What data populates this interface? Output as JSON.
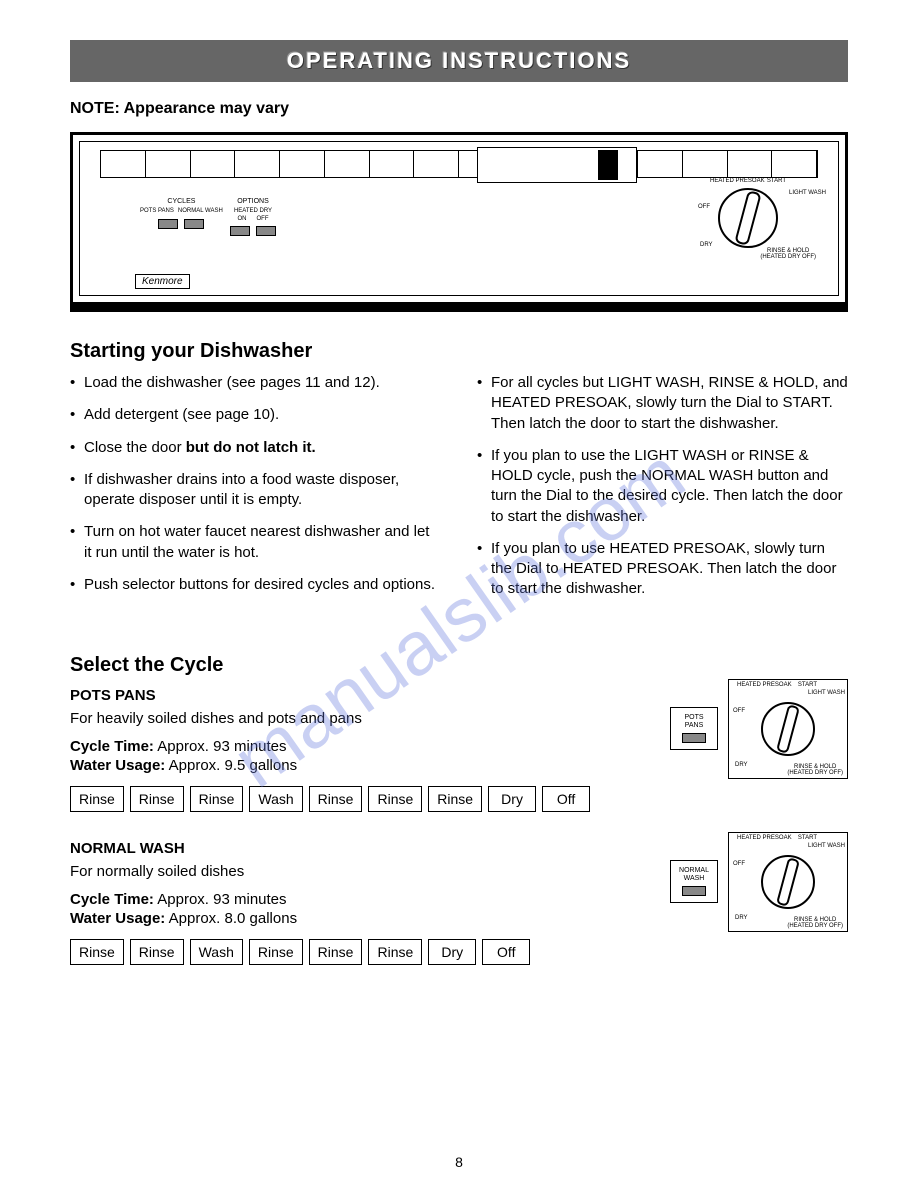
{
  "page": {
    "header": "OPERATING INSTRUCTIONS",
    "note": "NOTE: Appearance may vary",
    "page_number": "8",
    "watermark": "manualslib.com"
  },
  "panel": {
    "cycles_label": "CYCLES",
    "cycles_btn1": "POTS PANS",
    "cycles_btn2": "NORMAL WASH",
    "options_label": "OPTIONS",
    "options_sub": "HEATED DRY",
    "options_btn1": "ON",
    "options_btn2": "OFF",
    "brand": "Kenmore",
    "dial": {
      "heated_presoak": "HEATED PRESOAK",
      "start": "START",
      "light_wash": "LIGHT WASH",
      "off": "OFF",
      "dry": "DRY",
      "rinse_hold": "RINSE & HOLD",
      "rinse_hold_sub": "(HEATED DRY OFF)"
    }
  },
  "starting": {
    "title": "Starting your Dishwasher",
    "left": [
      "Load the dishwasher (see pages 11 and 12).",
      "Add detergent (see page 10).",
      "Close the door <b>but do not latch it.</b>",
      "If dishwasher drains into a food waste disposer, operate disposer until it is empty.",
      "Turn on hot water faucet nearest dishwasher and let it run until the water is hot.",
      "Push selector buttons for desired cycles and options."
    ],
    "right": [
      "For all cycles but LIGHT WASH, RINSE & HOLD, and HEATED PRESOAK, slowly turn the Dial to START. Then latch the door to start the dishwasher.",
      "If you plan to use the LIGHT WASH or RINSE & HOLD cycle, push the NORMAL WASH button and turn the Dial to the desired cycle. Then latch the door to start the dishwasher.",
      "If you plan to use HEATED PRESOAK, slowly turn the Dial to HEATED PRESOAK. Then latch the door to start the dishwasher."
    ]
  },
  "select": {
    "title": "Select the Cycle"
  },
  "pots_pans": {
    "name": "POTS PANS",
    "desc": "For heavily soiled dishes and pots and pans",
    "time_label": "Cycle Time:",
    "time": " Approx. 93 minutes",
    "water_label": "Water Usage:",
    "water": " Approx. 9.5 gallons",
    "steps": [
      "Rinse",
      "Rinse",
      "Rinse",
      "Wash",
      "Rinse",
      "Rinse",
      "Rinse",
      "Dry",
      "Off"
    ],
    "button_label": "POTS PANS"
  },
  "normal_wash": {
    "name": "NORMAL WASH",
    "desc": "For normally soiled dishes",
    "time_label": "Cycle Time:",
    "time": " Approx. 93 minutes",
    "water_label": "Water Usage:",
    "water": " Approx. 8.0 gallons",
    "steps": [
      "Rinse",
      "Rinse",
      "Wash",
      "Rinse",
      "Rinse",
      "Rinse",
      "Dry",
      "Off"
    ],
    "button_label": "NORMAL WASH"
  },
  "colors": {
    "header_bg": "#666666",
    "text": "#000000",
    "watermark": "rgba(100,120,220,0.35)"
  }
}
